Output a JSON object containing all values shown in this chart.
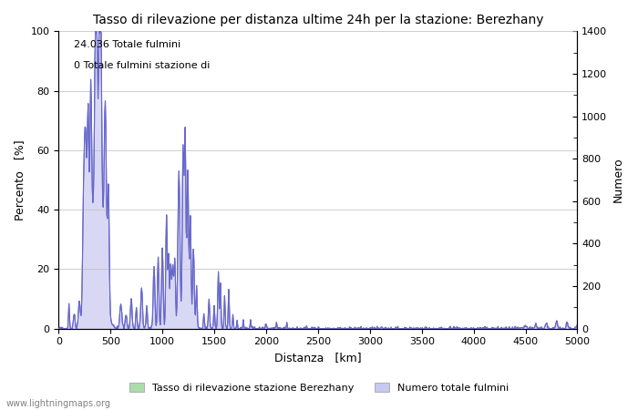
{
  "title": "Tasso di rilevazione per distanza ultime 24h per la stazione: Berezhany",
  "xlabel": "Distanza   [km]",
  "ylabel_left": "Percento   [%]",
  "ylabel_right": "Numero",
  "annotation_line1": "24.036 Totale fulmini",
  "annotation_line2": "0 Totale fulmini stazione di",
  "legend_label1": "Tasso di rilevazione stazione Berezhany",
  "legend_label2": "Numero totale fulmini",
  "legend_color1": "#aaddaa",
  "legend_color2": "#c8c8f0",
  "watermark": "www.lightningmaps.org",
  "xlim": [
    0,
    5000
  ],
  "ylim_left": [
    0,
    100
  ],
  "ylim_right": [
    0,
    1400
  ],
  "yticks_left": [
    0,
    20,
    40,
    60,
    80,
    100
  ],
  "yticks_right": [
    0,
    200,
    400,
    600,
    800,
    1000,
    1200,
    1400
  ],
  "xticks": [
    0,
    500,
    1000,
    1500,
    2000,
    2500,
    3000,
    3500,
    4000,
    4500,
    5000
  ],
  "line_color": "#6868cc",
  "fill_color": "#d8d8f4",
  "background_color": "#ffffff",
  "grid_color": "#bbbbbb"
}
